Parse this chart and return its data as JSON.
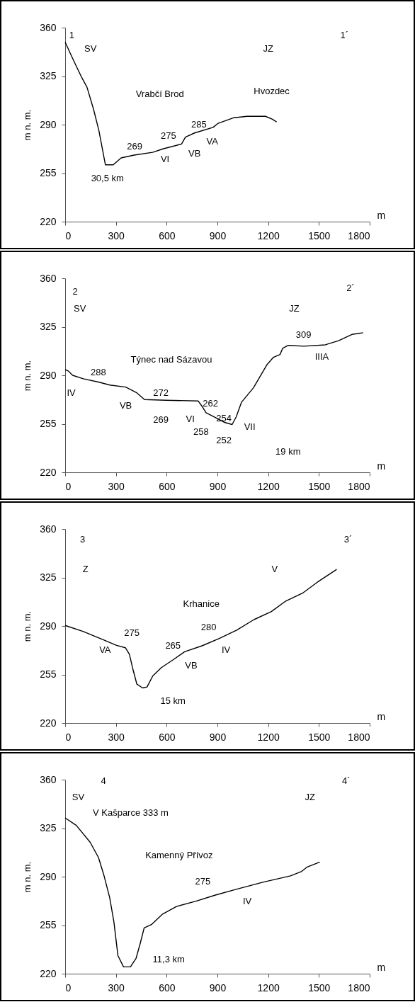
{
  "chart_data": [
    {
      "type": "line",
      "xlabel": "m",
      "ylabel": "m n. m.",
      "xlim": [
        0,
        1800
      ],
      "ylim": [
        220,
        360
      ],
      "xticks": [
        0,
        300,
        600,
        900,
        1200,
        1500,
        1800
      ],
      "yticks": [
        220,
        255,
        290,
        325,
        360
      ],
      "grid": false,
      "series": [
        {
          "color": "#000000",
          "x": [
            0,
            51,
            98,
            129,
            168,
            199,
            238,
            284,
            331,
            408,
            517,
            578,
            688,
            711,
            765,
            874,
            905,
            998,
            1075,
            1184,
            1223,
            1250
          ],
          "values": [
            349.5,
            336,
            324,
            317,
            301,
            286,
            261,
            261,
            266,
            268,
            270,
            272.5,
            276,
            281,
            284,
            288,
            291,
            295,
            296,
            296,
            294,
            292
          ]
        }
      ],
      "annotations": [
        "1",
        "SV",
        "1´",
        "JZ",
        "Vrabčí Brod",
        "Hvozdec",
        "285",
        "275",
        "269",
        "VA",
        "VB",
        "VI",
        "30,5 km"
      ]
    },
    {
      "type": "line",
      "xlabel": "m",
      "ylabel": "m n. m.",
      "xlim": [
        0,
        1800
      ],
      "ylim": [
        220,
        360
      ],
      "xticks": [
        0,
        300,
        600,
        900,
        1200,
        1500,
        1800
      ],
      "yticks": [
        220,
        255,
        290,
        325,
        360
      ],
      "grid": false,
      "series": [
        {
          "color": "#000000",
          "x": [
            0,
            20,
            44,
            107,
            201,
            264,
            358,
            421,
            469,
            597,
            786,
            810,
            833,
            896,
            943,
            987,
            1011,
            1042,
            1113,
            1192,
            1231,
            1270,
            1286,
            1318,
            1412,
            1538,
            1616,
            1695,
            1761
          ],
          "values": [
            294.2,
            293,
            290,
            287.5,
            285,
            283,
            281.5,
            277.6,
            272.5,
            272,
            271.5,
            267.5,
            263,
            259,
            256,
            254.5,
            260,
            270.5,
            281,
            297.5,
            303,
            305,
            309.5,
            311.6,
            311,
            312,
            315,
            319.5,
            320.7
          ]
        }
      ],
      "annotations": [
        "2",
        "SV",
        "2´",
        "JZ",
        "Týnec nad Sázavou",
        "288",
        "IV",
        "VB",
        "272",
        "269",
        "VI",
        "262",
        "254",
        "258",
        "252",
        "VII",
        "19 km",
        "309",
        "IIIA"
      ]
    },
    {
      "type": "line",
      "xlabel": "m",
      "ylabel": "m n. m.",
      "xlim": [
        0,
        1800
      ],
      "ylim": [
        220,
        360
      ],
      "xticks": [
        0,
        300,
        600,
        900,
        1200,
        1500,
        1800
      ],
      "yticks": [
        220,
        255,
        290,
        325,
        360
      ],
      "grid": false,
      "series": [
        {
          "color": "#000000",
          "x": [
            0,
            108,
            227,
            304,
            356,
            380,
            398,
            424,
            458,
            484,
            518,
            569,
            638,
            706,
            809,
            911,
            1014,
            1116,
            1219,
            1304,
            1407,
            1492,
            1605
          ],
          "values": [
            290.4,
            286,
            280,
            276,
            274.3,
            269.5,
            260,
            248,
            245.3,
            246,
            254,
            260,
            265.6,
            271.4,
            275.7,
            281,
            287,
            294.6,
            300.4,
            308,
            314,
            321.7,
            330.8
          ]
        }
      ],
      "annotations": [
        "3",
        "Z",
        "3´",
        "V",
        "Krhanice",
        "275",
        "VA",
        "280",
        "265",
        "IV",
        "VB",
        "15 km"
      ]
    },
    {
      "type": "line",
      "xlabel": "m",
      "ylabel": "m n. m.",
      "xlim": [
        0,
        1800
      ],
      "ylim": [
        220,
        360
      ],
      "xticks": [
        0,
        300,
        600,
        900,
        1200,
        1500,
        1800
      ],
      "yticks": [
        220,
        255,
        290,
        325,
        360
      ],
      "grid": false,
      "series": [
        {
          "color": "#000000",
          "x": [
            0,
            66,
            148,
            197,
            230,
            263,
            288,
            312,
            345,
            386,
            419,
            444,
            467,
            510,
            576,
            658,
            773,
            888,
            1003,
            1168,
            1332,
            1398,
            1431,
            1505
          ],
          "values": [
            332.4,
            327,
            314.8,
            303.8,
            290.6,
            275,
            257.5,
            233,
            224.9,
            224.9,
            231,
            242,
            253,
            255.4,
            263,
            268.5,
            272.3,
            276.7,
            280.6,
            286,
            290.6,
            293.8,
            297,
            300.5
          ]
        }
      ],
      "annotations": [
        "4",
        "SV",
        "4´",
        "JZ",
        "V Kašparce 333 m",
        "Kamenný Přívoz",
        "275",
        "IV",
        "11,3 km"
      ]
    }
  ]
}
